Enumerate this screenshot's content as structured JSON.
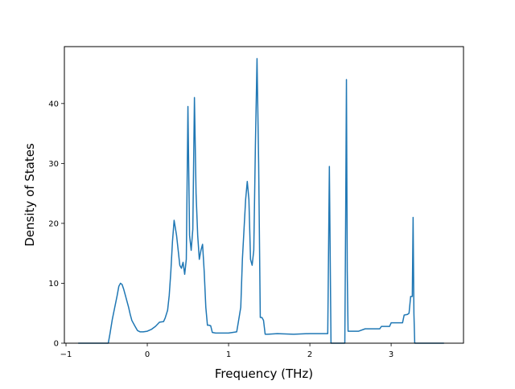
{
  "chart_data": {
    "type": "line",
    "xlabel": "Frequency (THz)",
    "ylabel": "Density of States",
    "xlim": [
      -1.02,
      3.89
    ],
    "ylim": [
      0,
      49.5
    ],
    "xticks": [
      -1,
      0,
      1,
      2,
      3
    ],
    "yticks": [
      0,
      10,
      20,
      30,
      40
    ],
    "xtick_labels": [
      "−1",
      "0",
      "1",
      "2",
      "3"
    ],
    "ytick_labels": [
      "0",
      "10",
      "20",
      "30",
      "40"
    ],
    "grid": false,
    "legend": "none",
    "line_color": "#1f77b4",
    "series": [
      {
        "x": [
          -0.85,
          -0.48,
          -0.46,
          -0.43,
          -0.4,
          -0.37,
          -0.35,
          -0.33,
          -0.31,
          -0.29,
          -0.27,
          -0.25,
          -0.23,
          -0.21,
          -0.19,
          -0.15,
          -0.12,
          -0.09,
          -0.05,
          0.0,
          0.05,
          0.1,
          0.15,
          0.2,
          0.22,
          0.25,
          0.27,
          0.29,
          0.31,
          0.33,
          0.36,
          0.38,
          0.4,
          0.42,
          0.44,
          0.46,
          0.48,
          0.5,
          0.52,
          0.54,
          0.56,
          0.58,
          0.6,
          0.62,
          0.64,
          0.66,
          0.68,
          0.7,
          0.72,
          0.74,
          0.76,
          0.78,
          0.8,
          0.84,
          0.87,
          0.89,
          1.0,
          1.1,
          1.12,
          1.15,
          1.17,
          1.19,
          1.21,
          1.23,
          1.25,
          1.27,
          1.29,
          1.31,
          1.33,
          1.35,
          1.37,
          1.39,
          1.41,
          1.43,
          1.45,
          1.48,
          1.6,
          1.8,
          2.0,
          2.22,
          2.24,
          2.26,
          2.28,
          2.3,
          2.32,
          2.34,
          2.43,
          2.44,
          2.45,
          2.46,
          2.47,
          2.48,
          2.5,
          2.6,
          2.68,
          2.7,
          2.8,
          2.86,
          2.88,
          2.98,
          3.0,
          3.02,
          3.04,
          3.14,
          3.16,
          3.2,
          3.22,
          3.24,
          3.26,
          3.27,
          3.28,
          3.29,
          3.3,
          3.4,
          3.5,
          3.65
        ],
        "y": [
          0,
          0,
          1.5,
          4.0,
          6.0,
          8.0,
          9.5,
          10.0,
          9.8,
          9.0,
          8.0,
          7.0,
          6.0,
          4.8,
          3.8,
          2.8,
          2.1,
          1.9,
          1.9,
          2.0,
          2.3,
          2.8,
          3.5,
          3.6,
          4.2,
          5.5,
          8.0,
          12.0,
          17.0,
          20.5,
          18.0,
          15.5,
          13.0,
          12.5,
          13.5,
          11.5,
          14.0,
          39.5,
          18.0,
          15.5,
          19.0,
          41.0,
          25.0,
          18.0,
          14.0,
          15.5,
          16.5,
          12.0,
          6.0,
          3.0,
          3.0,
          2.9,
          1.8,
          1.7,
          1.7,
          1.7,
          1.7,
          1.9,
          3.5,
          6.0,
          14.0,
          19.0,
          24.0,
          27.0,
          24.0,
          14.0,
          13.0,
          15.5,
          33.0,
          47.5,
          30.0,
          4.3,
          4.3,
          3.8,
          1.5,
          1.5,
          1.6,
          1.5,
          1.6,
          1.6,
          29.5,
          0,
          0,
          0,
          0,
          0,
          0,
          20.0,
          44.0,
          12.0,
          2.0,
          2.0,
          2.0,
          2.0,
          2.4,
          2.4,
          2.4,
          2.4,
          2.8,
          2.8,
          3.4,
          3.4,
          3.4,
          3.4,
          4.7,
          4.8,
          5.0,
          7.8,
          7.8,
          21.0,
          5.0,
          0,
          0,
          0,
          0,
          0
        ]
      }
    ]
  }
}
